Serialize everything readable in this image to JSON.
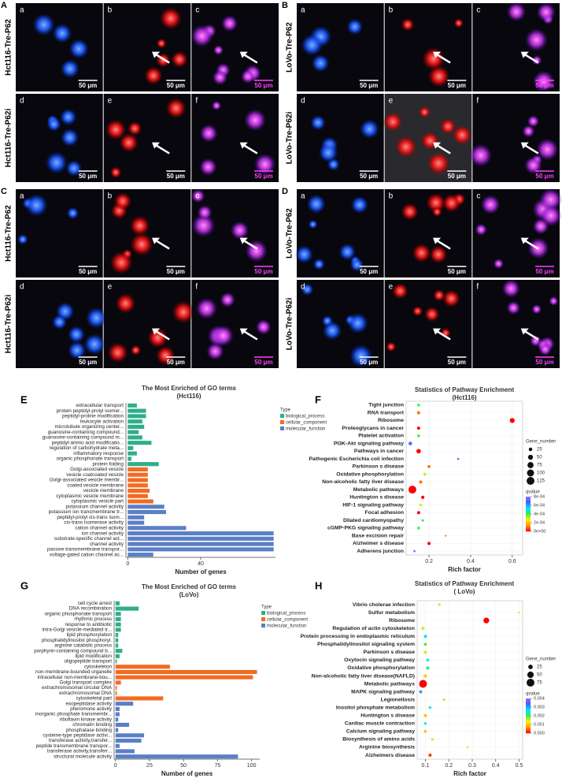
{
  "panels": [
    {
      "letter": "A",
      "rows": [
        {
          "label": "Hct116-Tre-P62",
          "images": [
            {
              "letter": "a",
              "scale": "50 μm"
            },
            {
              "letter": "b",
              "scale": "50 μm"
            },
            {
              "letter": "c",
              "scale": "50 μm"
            }
          ]
        },
        {
          "label": "Hct116-Tre-P62i",
          "images": [
            {
              "letter": "d",
              "scale": "50 μm"
            },
            {
              "letter": "e",
              "scale": "50 μm"
            },
            {
              "letter": "f",
              "scale": "50 μm"
            }
          ]
        }
      ]
    },
    {
      "letter": "B",
      "rows": [
        {
          "label": "LoVo-Tre-P62",
          "images": [
            {
              "letter": "a",
              "scale": "50 μm"
            },
            {
              "letter": "b",
              "scale": "50 μm"
            },
            {
              "letter": "c",
              "scale": "50 μm"
            }
          ]
        },
        {
          "label": "LoVo-Tre-P62i",
          "images": [
            {
              "letter": "d",
              "scale": "50 μm"
            },
            {
              "letter": "e",
              "scale": "50 μm"
            },
            {
              "letter": "f",
              "scale": "50 μm"
            }
          ]
        }
      ]
    },
    {
      "letter": "C",
      "rows": [
        {
          "label": "Hct116-Tre-P62",
          "images": [
            {
              "letter": "a",
              "scale": "50 μm"
            },
            {
              "letter": "b",
              "scale": "50 μm"
            },
            {
              "letter": "c",
              "scale": "50 μm"
            }
          ]
        },
        {
          "label": "Hct116-Tre-P62i",
          "images": [
            {
              "letter": "d",
              "scale": "50 μm"
            },
            {
              "letter": "e",
              "scale": "50 μm"
            },
            {
              "letter": "f",
              "scale": "50 μm"
            }
          ]
        }
      ]
    },
    {
      "letter": "D",
      "rows": [
        {
          "label": "LoVo-Tre-P62",
          "images": [
            {
              "letter": "a",
              "scale": "50 μm"
            },
            {
              "letter": "b",
              "scale": "50 μm"
            },
            {
              "letter": "c",
              "scale": "50 μm"
            }
          ]
        },
        {
          "label": "LoVo-Tre-P62i",
          "images": [
            {
              "letter": "d",
              "scale": "50 μm"
            },
            {
              "letter": "e",
              "scale": "50 μm"
            },
            {
              "letter": "f",
              "scale": "50 μm"
            }
          ]
        }
      ]
    }
  ],
  "chart_data": [
    {
      "type": "bar",
      "letter": "E",
      "title": "The Most Enriched of GO terms",
      "subtitle": "(Hct116)",
      "xlabel": "Number of genes",
      "legend_title": "Type",
      "xlim": [
        -1,
        81
      ],
      "xticks": [
        0,
        40
      ],
      "series": [
        {
          "name": "biological_process",
          "color": "#2fae8a",
          "categories": [
            "extracellular transport",
            "protein peptidyl-prolyl isomer...",
            "peptidyl-proline modification",
            "leukocyte activation",
            "microtubule organizing center...",
            "guanosine-containing compound...",
            "guanosine-containing compound m...",
            "peptidyl-amino acid modificatio...",
            "regulation of carbohydrate meta...",
            "inflammatory response",
            "organic phosphonate transport",
            "protein folding"
          ],
          "values": [
            5,
            10,
            10,
            8,
            9,
            6,
            8,
            13,
            3,
            5,
            2,
            17
          ]
        },
        {
          "name": "cellular_component",
          "color": "#f26b21",
          "categories": [
            "Golgi-associated vesicle",
            "vesicle coatcoated vesicle",
            "Golgi-associated vesicle membr...",
            "coated vesicle membrane",
            "vesicle membrane",
            "cytoplasmic vesicle membrane",
            "cytoplasmic vesicle part"
          ],
          "values": [
            11,
            11,
            11,
            11,
            12,
            11,
            14
          ]
        },
        {
          "name": "molecular_function",
          "color": "#5b7fc7",
          "categories": [
            "potassium channel activity",
            "potassium ion transmembrane tr...",
            "peptidyl-prolyl cis-trans isom...",
            "cis-trans isomerase activity",
            "cation channel activity",
            "ion channel activity",
            "substrate-specific channel act...",
            "channel activity",
            "passive transmembrane transpor...",
            "voltage-gated cation channel ac..."
          ],
          "values": [
            20,
            21,
            9,
            9,
            32,
            80,
            80,
            80,
            80,
            14
          ]
        }
      ]
    },
    {
      "type": "bubble",
      "letter": "F",
      "title": "Statistics of Pathway Enrichment",
      "subtitle": "(Hct116)",
      "xlabel": "Rich factor",
      "xlim": [
        0.09,
        0.65
      ],
      "xticks": [
        0.2,
        0.4,
        0.6
      ],
      "categories": [
        "Tight junction",
        "RNA transport",
        "Ribosome",
        "Proteoglycans in cancer",
        "Platelet activation",
        "PI3K-Akt signaling pathway",
        "Pathways in cancer",
        "Pathogenic Escherichia coli infection",
        "Parkinson s disease",
        "Oxidative phosphorylation",
        "Non-alcoholic fatty liver disease",
        "Metabolic pathways",
        "Huntington s disease",
        "HIF-1 signaling pathway",
        "Focal adhesion",
        "Dilated cardiomyopathy",
        "cGMP-PKG signaling pathway",
        "Base excision repair",
        "Alzheimer s disease",
        "Adherens junction"
      ],
      "values": [
        0.15,
        0.15,
        0.6,
        0.15,
        0.15,
        0.11,
        0.15,
        0.34,
        0.2,
        0.18,
        0.16,
        0.12,
        0.17,
        0.16,
        0.15,
        0.17,
        0.15,
        0.28,
        0.2,
        0.13
      ],
      "sizes": [
        15,
        20,
        50,
        20,
        15,
        25,
        40,
        8,
        18,
        18,
        20,
        125,
        22,
        15,
        20,
        12,
        15,
        6,
        20,
        10
      ],
      "qvalues": [
        0.0004,
        0.0001,
        0,
        0,
        0.0004,
        0.0007,
        0,
        0.0007,
        0.0001,
        0.0003,
        0.0001,
        0,
        0,
        0.0003,
        0,
        0.0004,
        0.0004,
        0.0001,
        0,
        0.0008
      ],
      "size_title": "Gene_number",
      "size_ticks": [
        25,
        50,
        75,
        100,
        125
      ],
      "color_title": "qvalue",
      "color_lim": [
        0,
        0.0008
      ],
      "color_ticks": [
        {
          "value": 0.0008,
          "label": "8e-04"
        },
        {
          "value": 0.0006,
          "label": "6e-04"
        },
        {
          "value": 0.0004,
          "label": "4e-04"
        },
        {
          "value": 0.0002,
          "label": "2e-04"
        },
        {
          "value": 0,
          "label": "0e+00"
        }
      ],
      "colormap": [
        "#ff0000",
        "#ff9900",
        "#ffee00",
        "#33ee55",
        "#00e5ff",
        "#3366ff",
        "#a066ff"
      ]
    },
    {
      "type": "bar",
      "letter": "G",
      "title": "The Most Enriched of GO terms",
      "subtitle": "(LoVo)",
      "xlabel": "Number of genes",
      "legend_title": "Type",
      "xlim": [
        -1,
        106
      ],
      "xticks": [
        0,
        25,
        50,
        75,
        100
      ],
      "series": [
        {
          "name": "biological_process",
          "color": "#2fae8a",
          "categories": [
            "cell cycle arrest",
            "DNA recombination",
            "organic phosphonate transport",
            "rhythmic process",
            "response to antibiotic",
            "intra-Golgi vesicle-mediated tr...",
            "lipid phosphorylation",
            "phosphatidylinositol phosphoryl.",
            "arginine catabolic process",
            "porphyrin-containing compound b...",
            "lipid modification",
            "oligopeptide transport"
          ],
          "values": [
            3,
            17,
            4,
            4,
            4,
            4,
            2,
            2,
            2,
            5,
            3,
            1
          ]
        },
        {
          "name": "cellular_component",
          "color": "#f26b21",
          "categories": [
            "cytoskeleton",
            "non-membrane-bounded organelle",
            "intracellular non-membrane-bou...",
            "Golgi transport complex",
            "extrachromosomal circular DNA",
            "extrachromosomal DNA",
            "cytoskeletal part"
          ],
          "values": [
            40,
            104,
            101,
            4,
            1,
            1,
            35
          ]
        },
        {
          "name": "molecular_function",
          "color": "#5b7fc7",
          "categories": [
            "exopeptidase activity",
            "pheromone activity",
            "inorganic phosphate transmembr...",
            "riboflavin kinase activity",
            "chromatin binding",
            "phosphatase binding",
            "cysteine-type peptidase activi...",
            "transferase activity,transfer...",
            "peptide transmembrane transpor...",
            "transferase activity,transferr...",
            "structural molecule activity"
          ],
          "values": [
            13,
            3,
            3,
            2,
            10,
            2,
            21,
            19,
            3,
            14,
            90
          ]
        }
      ]
    },
    {
      "type": "bubble",
      "letter": "H",
      "title": "Statistics of Pathway Enrichment",
      "subtitle": "( LoVo)",
      "xlabel": "Rich factor",
      "xlim": [
        0.065,
        0.515
      ],
      "xticks": [
        0.1,
        0.2,
        0.3,
        0.4,
        0.5
      ],
      "categories": [
        "Vibrio cholerae infection",
        "Sulfur metabolism",
        "Ribosome",
        "Regulation of actin cytoskeleton",
        "Protein processing in endoplasmic reticulum",
        "Phosphatidylinositol signaling system",
        "Parkinson s disease",
        "Oxytocin signaling pathway",
        "Oxidative phosphorylation",
        "Non-alcoholic fatty liver disease(NAFLD)",
        "Metabolic pathways",
        "MAPK signaling pathway",
        "Legionellosis",
        "Inositol phosphate metabolism",
        "Huntington s disease",
        "Cardiac muscle contraction",
        "Calcium signaling pathway",
        "Biosynthesis of amino acids",
        "Arginine biosynthesis",
        "Alzheimers disease"
      ],
      "values": [
        0.16,
        0.5,
        0.36,
        0.09,
        0.1,
        0.1,
        0.1,
        0.11,
        0.11,
        0.1,
        0.09,
        0.08,
        0.18,
        0.12,
        0.1,
        0.1,
        0.1,
        0.13,
        0.28,
        0.12
      ],
      "sizes": [
        8,
        4,
        40,
        12,
        12,
        10,
        12,
        10,
        12,
        12,
        75,
        12,
        8,
        8,
        12,
        8,
        10,
        8,
        4,
        14
      ],
      "qvalues": [
        0.0015,
        0.0015,
        0,
        0.0015,
        0.0025,
        0.002,
        0.0015,
        0.0025,
        0.002,
        0.001,
        0,
        0.003,
        0.0015,
        0.0025,
        0.001,
        0.0025,
        0.001,
        0.0015,
        0.001,
        0.0003
      ],
      "size_title": "Gene_number",
      "size_ticks": [
        25,
        50,
        75
      ],
      "color_title": "qvalue",
      "color_lim": [
        0,
        0.004
      ],
      "color_ticks": [
        0.004,
        0.003,
        0.002,
        0.001,
        {
          "value": 0,
          "label": "0.000"
        }
      ],
      "colormap": [
        "#ff0000",
        "#ff9900",
        "#ffee00",
        "#33ee55",
        "#00e5ff",
        "#3366ff",
        "#a066ff"
      ]
    }
  ]
}
